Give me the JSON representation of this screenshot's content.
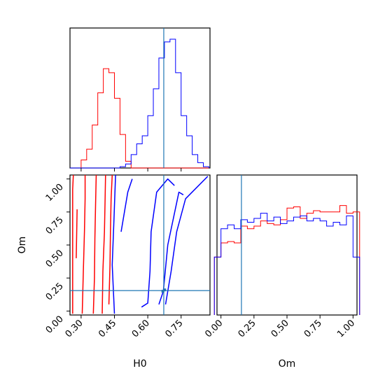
{
  "chart_data": {
    "type": "corner",
    "colors": {
      "series_a": "#ff0000",
      "series_b": "#0000ff",
      "truth": "#1f77b4"
    },
    "truths": {
      "H0": 0.672,
      "Om": 0.155
    },
    "x_ticks": [
      0.3,
      0.45,
      0.6,
      0.75
    ],
    "y_ticks": [
      0.0,
      0.25,
      0.5,
      0.75,
      1.0
    ],
    "tick_labels": {
      "H0": [
        "0.30",
        "0.45",
        "0.60",
        "0.75"
      ],
      "Om": [
        "0.00",
        "0.25",
        "0.50",
        "0.75",
        "1.00"
      ]
    },
    "xlabel_bottom_left": "H0",
    "ylabel_bottom_left": "Om",
    "xlabel_bottom_right": "Om",
    "ranges": {
      "H0": [
        0.25,
        0.88
      ],
      "Om": [
        -0.03,
        1.03
      ]
    },
    "hist_H0": {
      "edges": [
        0.25,
        0.275,
        0.3,
        0.325,
        0.35,
        0.375,
        0.4,
        0.425,
        0.45,
        0.475,
        0.5,
        0.525,
        0.55,
        0.575,
        0.6,
        0.625,
        0.65,
        0.675,
        0.7,
        0.725,
        0.75,
        0.775,
        0.8,
        0.825,
        0.85,
        0.875
      ],
      "series_a": [
        0,
        0,
        0.06,
        0.14,
        0.32,
        0.56,
        0.74,
        0.71,
        0.52,
        0.25,
        0.05,
        0,
        0,
        0,
        0,
        0,
        0,
        0,
        0,
        0,
        0,
        0,
        0,
        0,
        0
      ],
      "series_b": [
        0,
        0,
        0,
        0,
        0,
        0,
        0,
        0,
        0,
        0.01,
        0.03,
        0.1,
        0.18,
        0.24,
        0.39,
        0.59,
        0.82,
        0.94,
        0.96,
        0.71,
        0.39,
        0.24,
        0.1,
        0.04,
        0.01
      ]
    },
    "hist_Om": {
      "edges": [
        -0.05,
        0.0,
        0.05,
        0.1,
        0.15,
        0.2,
        0.25,
        0.3,
        0.35,
        0.4,
        0.45,
        0.5,
        0.55,
        0.6,
        0.65,
        0.7,
        0.75,
        0.8,
        0.85,
        0.9,
        0.95,
        1.0,
        1.05
      ],
      "series_a": [
        0.45,
        0.56,
        0.57,
        0.56,
        0.69,
        0.67,
        0.69,
        0.73,
        0.71,
        0.7,
        0.74,
        0.83,
        0.84,
        0.75,
        0.79,
        0.81,
        0.8,
        0.8,
        0.8,
        0.85,
        0.79,
        0.8
      ],
      "series_b": [
        0.45,
        0.67,
        0.7,
        0.67,
        0.74,
        0.72,
        0.75,
        0.79,
        0.73,
        0.76,
        0.71,
        0.73,
        0.76,
        0.77,
        0.73,
        0.75,
        0.73,
        0.69,
        0.72,
        0.7,
        0.77,
        0.45
      ]
    },
    "contours": {
      "series_a": [
        [
          [
            0.262,
            -0.02
          ],
          [
            0.262,
            0.28
          ],
          [
            0.262,
            0.6
          ],
          [
            0.262,
            0.92
          ],
          [
            0.265,
            1.03
          ]
        ],
        [
          [
            0.278,
            0.4
          ],
          [
            0.28,
            0.58
          ],
          [
            0.282,
            0.77
          ]
        ],
        [
          [
            0.305,
            -0.02
          ],
          [
            0.31,
            0.3
          ],
          [
            0.315,
            0.6
          ],
          [
            0.318,
            0.85
          ],
          [
            0.318,
            1.03
          ]
        ],
        [
          [
            0.355,
            -0.02
          ],
          [
            0.36,
            0.25
          ],
          [
            0.362,
            0.55
          ],
          [
            0.365,
            0.8
          ],
          [
            0.368,
            1.03
          ]
        ],
        [
          [
            0.395,
            -0.02
          ],
          [
            0.398,
            0.3
          ],
          [
            0.405,
            0.6
          ],
          [
            0.408,
            0.85
          ],
          [
            0.41,
            1.03
          ]
        ],
        [
          [
            0.425,
            0.05
          ],
          [
            0.43,
            0.35
          ],
          [
            0.432,
            0.6
          ],
          [
            0.435,
            0.85
          ],
          [
            0.44,
            1.03
          ]
        ]
      ],
      "series_b": [
        [
          [
            0.45,
            -0.02
          ],
          [
            0.44,
            0.35
          ],
          [
            0.448,
            0.7
          ],
          [
            0.455,
            1.03
          ]
        ],
        [
          [
            0.48,
            0.6
          ],
          [
            0.51,
            0.9
          ],
          [
            0.53,
            1.0
          ]
        ],
        [
          [
            0.572,
            0.03
          ],
          [
            0.6,
            0.06
          ],
          [
            0.61,
            0.3
          ],
          [
            0.615,
            0.6
          ],
          [
            0.64,
            0.9
          ],
          [
            0.69,
            1.0
          ],
          [
            0.72,
            0.95
          ]
        ],
        [
          [
            0.65,
            0.05
          ],
          [
            0.67,
            0.15
          ],
          [
            0.69,
            0.5
          ],
          [
            0.74,
            0.9
          ],
          [
            0.76,
            0.88
          ]
        ],
        [
          [
            0.68,
            0.05
          ],
          [
            0.705,
            0.3
          ],
          [
            0.73,
            0.6
          ],
          [
            0.77,
            0.85
          ],
          [
            0.87,
            1.02
          ]
        ]
      ]
    },
    "density_points": [
      {
        "series": "series_b",
        "points": [
          [
            0.668,
            0.15
          ],
          [
            0.676,
            0.16
          ]
        ]
      }
    ]
  }
}
